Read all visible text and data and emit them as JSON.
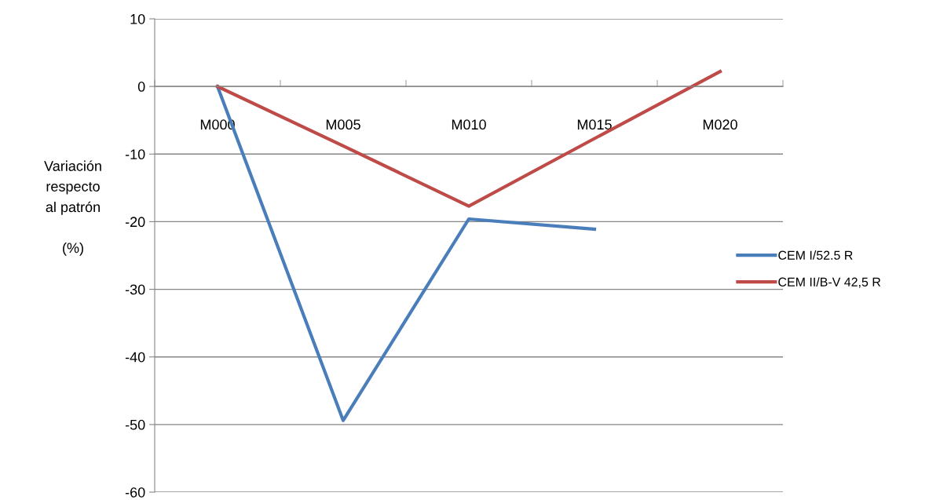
{
  "chart_data": {
    "type": "line",
    "ylabel": "Variación\nrespecto\nal patrón\n\n(%)",
    "categories": [
      "M000",
      "M005",
      "M010",
      "M015",
      "M020"
    ],
    "series": [
      {
        "name": "CEM I/52.5 R",
        "color": "#4a7ebb",
        "values": [
          0,
          -49.4,
          -19.6,
          -21.1,
          null
        ]
      },
      {
        "name": "CEM II/B-V 42,5 R",
        "color": "#be4b48",
        "values": [
          0,
          -8.8,
          -17.7,
          -7.7,
          2.2
        ]
      }
    ],
    "ylim": [
      -60,
      10
    ],
    "yticks": [
      -60,
      -50,
      -40,
      -30,
      -20,
      -10,
      0,
      10
    ],
    "grid": "y",
    "legend": "right",
    "marker": "none",
    "line_style": "solid"
  }
}
